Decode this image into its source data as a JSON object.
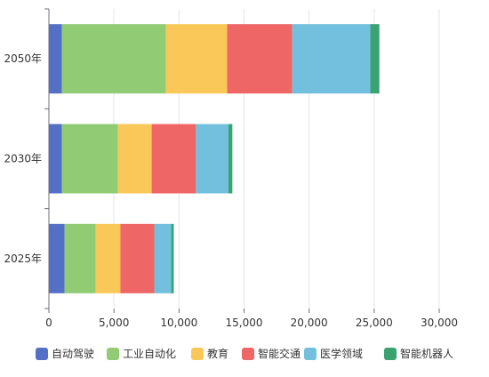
{
  "chart_data": {
    "type": "bar",
    "orientation": "horizontal",
    "stacked": true,
    "categories": [
      "2025年",
      "2030年",
      "2050年"
    ],
    "series": [
      {
        "name": "自动驾驶",
        "color": "#5470c6",
        "values": [
          1200,
          1000,
          1000
        ]
      },
      {
        "name": "工业自动化",
        "color": "#91cc75",
        "values": [
          2400,
          4300,
          8000
        ]
      },
      {
        "name": "教育",
        "color": "#fac858",
        "values": [
          1900,
          2600,
          4700
        ]
      },
      {
        "name": "智能交通",
        "color": "#ee6666",
        "values": [
          2600,
          3400,
          5000
        ]
      },
      {
        "name": "医学领域",
        "color": "#73c0de",
        "values": [
          1300,
          2500,
          6000
        ]
      },
      {
        "name": "智能机器人",
        "color": "#3ba272",
        "values": [
          200,
          300,
          700
        ]
      }
    ],
    "x_ticks": [
      "0",
      "5,000",
      "10,000",
      "15,000",
      "20,000",
      "25,000",
      "30,000"
    ],
    "xlim": [
      0,
      30000
    ],
    "grid": true,
    "legend_position": "bottom"
  }
}
